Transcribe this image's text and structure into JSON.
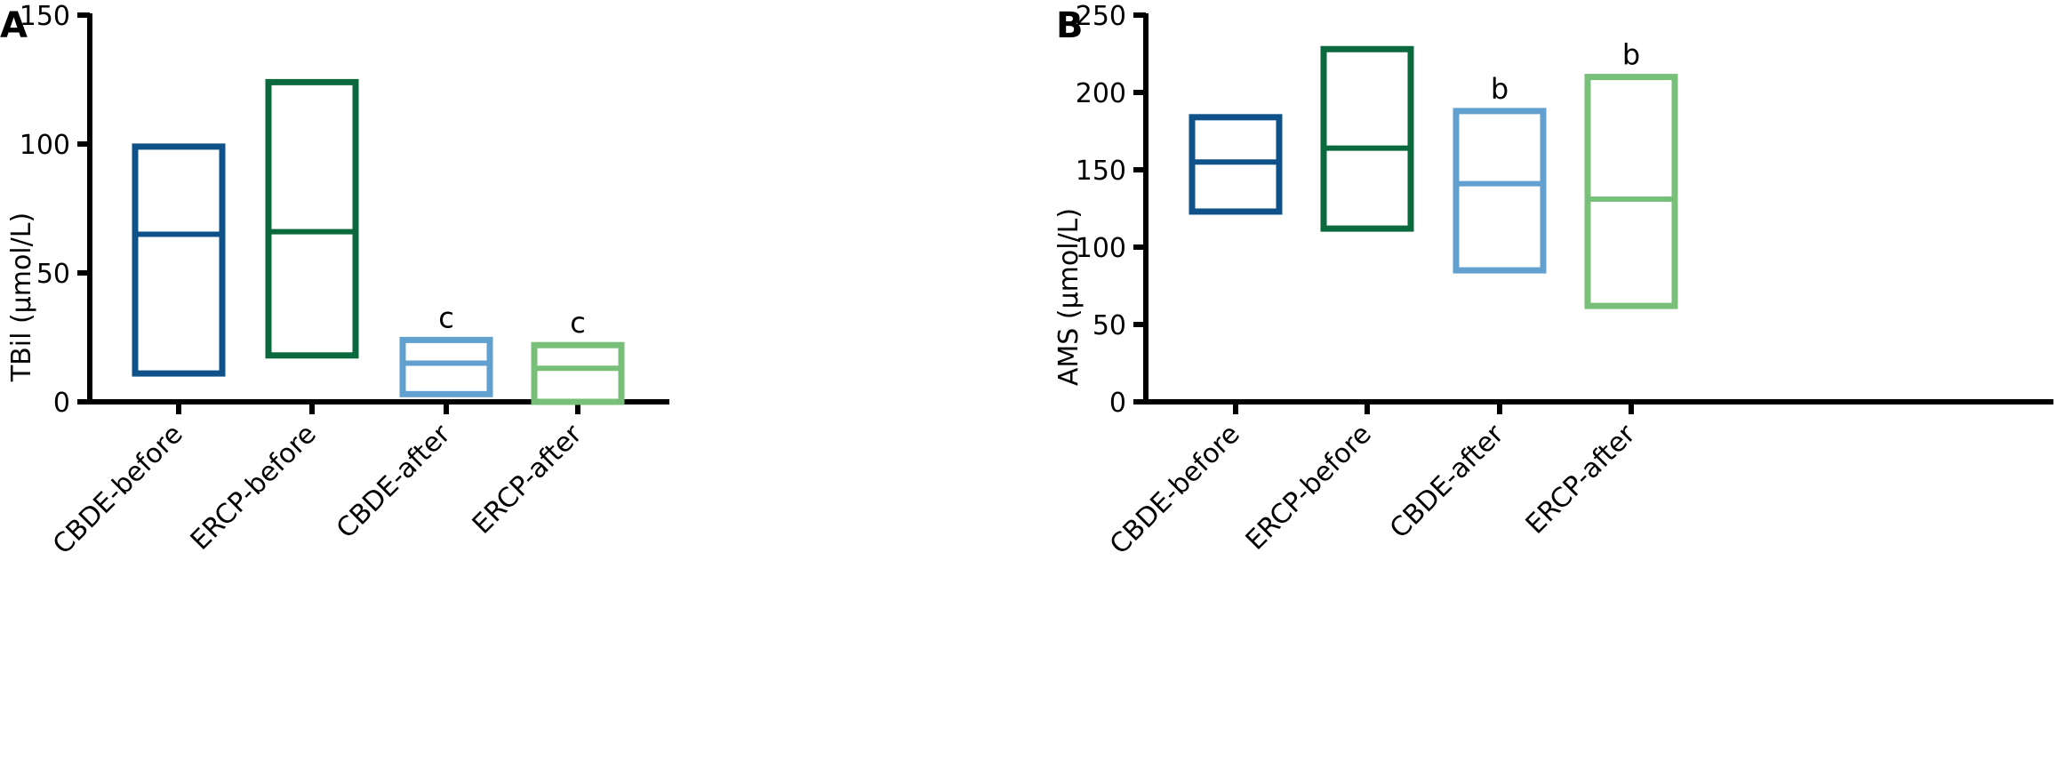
{
  "colors": {
    "CBDE-before": "#0e5289",
    "ERCP-before": "#0a6a3e",
    "CBDE-after": "#62a0cf",
    "ERCP-after": "#78c079"
  },
  "chart_data": [
    {
      "type": "box",
      "panel_label": "A",
      "ylabel": "TBil (μmol/L)",
      "ylim": [
        0,
        150
      ],
      "yticks": [
        0,
        50,
        100,
        150
      ],
      "categories": [
        "CBDE-before",
        "ERCP-before",
        "CBDE-after",
        "ERCP-after"
      ],
      "boxes": [
        {
          "category": "CBDE-before",
          "min": 11,
          "median": 65,
          "max": 99,
          "annotation": ""
        },
        {
          "category": "ERCP-before",
          "min": 18,
          "median": 66,
          "max": 124,
          "annotation": ""
        },
        {
          "category": "CBDE-after",
          "min": 3,
          "median": 15,
          "max": 24,
          "annotation": "c"
        },
        {
          "category": "ERCP-after",
          "min": 0,
          "median": 13,
          "max": 22,
          "annotation": "c"
        }
      ],
      "grid": false,
      "legend": "none"
    },
    {
      "type": "box",
      "panel_label": "B",
      "ylabel": "AMS (μmol/L)",
      "ylim": [
        0,
        250
      ],
      "yticks": [
        0,
        50,
        100,
        150,
        200,
        250
      ],
      "categories": [
        "CBDE-before",
        "ERCP-before",
        "CBDE-after",
        "ERCP-after"
      ],
      "boxes": [
        {
          "category": "CBDE-before",
          "min": 123,
          "median": 155,
          "max": 184,
          "annotation": ""
        },
        {
          "category": "ERCP-before",
          "min": 112,
          "median": 164,
          "max": 228,
          "annotation": ""
        },
        {
          "category": "CBDE-after",
          "min": 85,
          "median": 141,
          "max": 188,
          "annotation": "b"
        },
        {
          "category": "ERCP-after",
          "min": 62,
          "median": 131,
          "max": 210,
          "annotation": "b"
        }
      ],
      "grid": false,
      "legend": "none"
    }
  ]
}
